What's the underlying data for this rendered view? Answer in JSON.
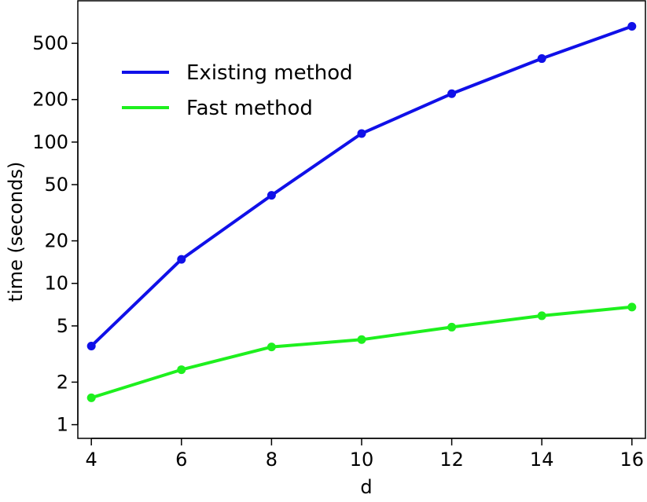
{
  "chart_data": {
    "type": "line",
    "xlabel": "d",
    "ylabel": "time (seconds)",
    "x": [
      4,
      6,
      8,
      10,
      12,
      14,
      16
    ],
    "xticks": [
      4,
      6,
      8,
      10,
      12,
      14,
      16
    ],
    "xlim": [
      3.7,
      16.3
    ],
    "yscale": "log",
    "yticks": [
      1,
      2,
      5,
      10,
      20,
      50,
      100,
      200,
      500
    ],
    "ylim": [
      0.8,
      1000
    ],
    "grid": false,
    "legend_position": "top-left",
    "series": [
      {
        "name": "Existing method",
        "color": "#1010e8",
        "values": [
          3.6,
          14.8,
          42,
          115,
          220,
          390,
          660
        ]
      },
      {
        "name": "Fast method",
        "color": "#1ef01e",
        "values": [
          1.55,
          2.45,
          3.55,
          4.0,
          4.9,
          5.9,
          6.8
        ]
      }
    ]
  }
}
